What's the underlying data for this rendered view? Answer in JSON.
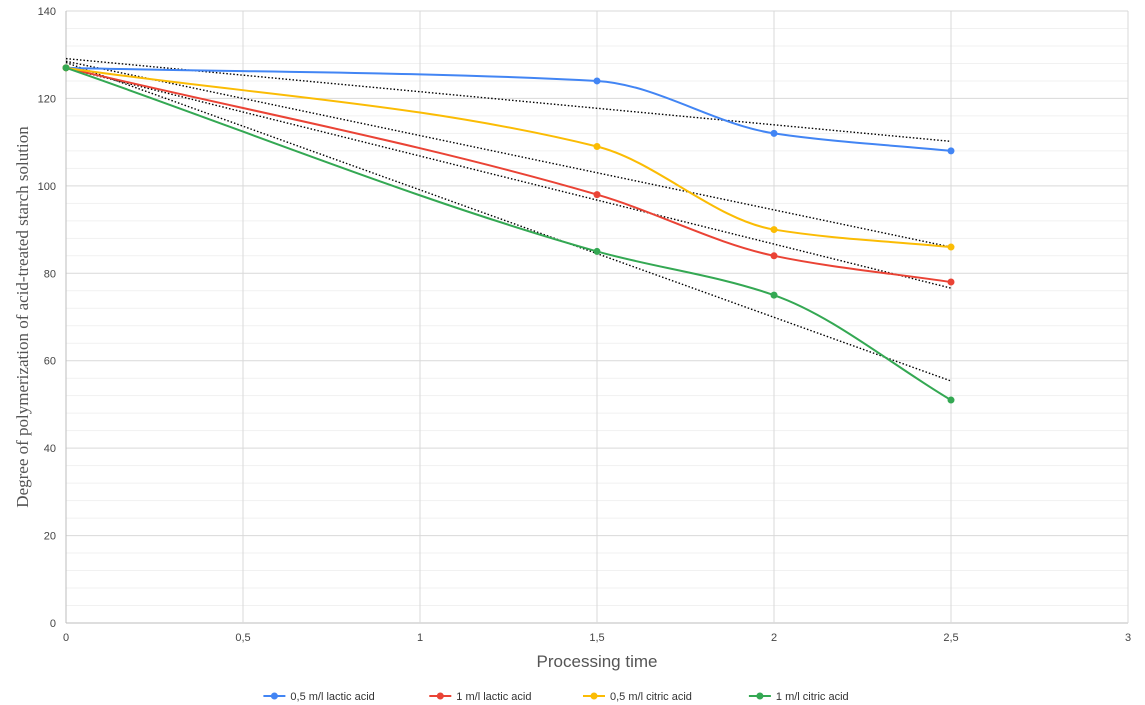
{
  "chart_data": {
    "type": "line",
    "xlabel": "Processing time",
    "ylabel": "Degree of polymerization of acid-treated starch solution",
    "xlim": [
      0,
      3
    ],
    "ylim": [
      0,
      140
    ],
    "x_ticks": [
      "0",
      "0,5",
      "1",
      "1,5",
      "2",
      "2,5",
      "3"
    ],
    "y_ticks": [
      "0",
      "20",
      "40",
      "60",
      "80",
      "100",
      "120",
      "140"
    ],
    "grid": true,
    "legend_position": "bottom",
    "x": [
      0,
      1.5,
      2,
      2.5
    ],
    "series": [
      {
        "name": "0,5 m/l lactic acid",
        "color": "#4285f4",
        "values": [
          127,
          124,
          112,
          108
        ]
      },
      {
        "name": "1 m/l lactic acid",
        "color": "#ea4335",
        "values": [
          127,
          98,
          84,
          78
        ]
      },
      {
        "name": "0,5 m/l citric acid",
        "color": "#fbbc04",
        "values": [
          127,
          109,
          90,
          86
        ]
      },
      {
        "name": "1 m/l citric acid",
        "color": "#34a853",
        "values": [
          127,
          85,
          75,
          51
        ]
      }
    ],
    "trendlines": {
      "type": "linear",
      "style": "dotted",
      "color": "#000000"
    }
  }
}
